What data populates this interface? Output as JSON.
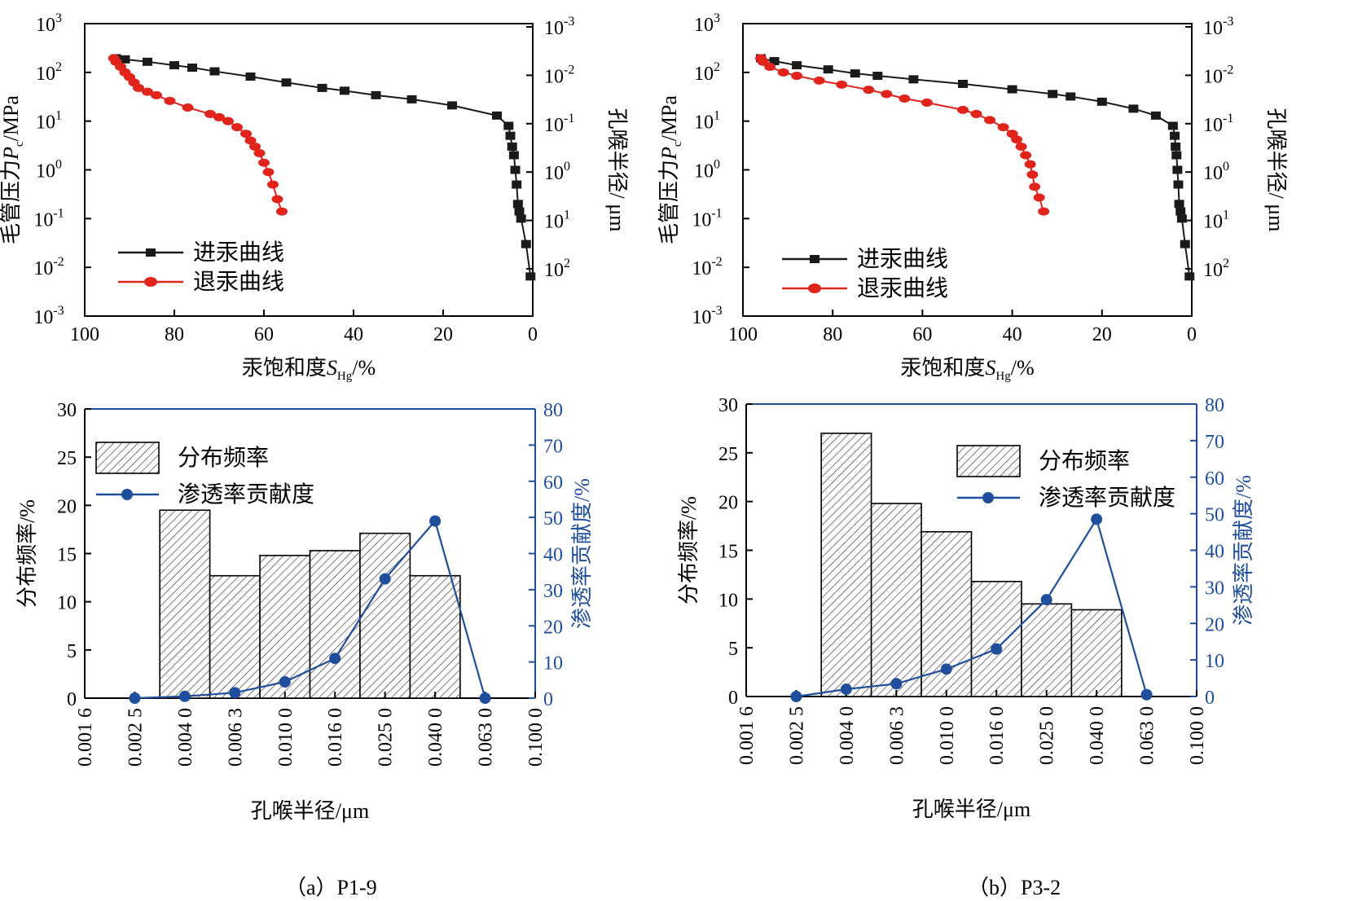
{
  "chart_data": [
    {
      "panel": "a-top",
      "type": "line",
      "xlabel": "汞饱和度",
      "xlabel_sym": "S",
      "xlabel_sub": "Hg",
      "xlabel_unit": "/%",
      "ylabel_left": "毛管压力",
      "ylabel_sym": "P",
      "ylabel_sub": "c",
      "ylabel_unit": "/MPa",
      "ylabel_right": "孔喉半径/ μm",
      "xlim": [
        100,
        0
      ],
      "xticks": [
        "100",
        "80",
        "60",
        "40",
        "20",
        "0"
      ],
      "ylim_log": [
        -3,
        3
      ],
      "yticks_left": [
        "10",
        "10",
        "10",
        "10",
        "10",
        "10",
        "10"
      ],
      "yticks_left_exp": [
        "-3",
        "-2",
        "-1",
        "0",
        "1",
        "2",
        "3"
      ],
      "yticks_right": [
        "10",
        "10",
        "10",
        "10",
        "10",
        "10"
      ],
      "yticks_right_exp": [
        "2",
        "1",
        "0",
        "-1",
        "-2",
        "-3"
      ],
      "legend": [
        "进汞曲线",
        "退汞曲线"
      ],
      "series": [
        {
          "name": "进汞曲线",
          "color": "#1a1a1a",
          "marker": "square",
          "points": [
            [
              0.5,
              0.0065
            ],
            [
              1.5,
              0.03
            ],
            [
              2.6,
              0.1
            ],
            [
              3.0,
              0.14
            ],
            [
              3.3,
              0.2
            ],
            [
              3.6,
              0.5
            ],
            [
              3.9,
              1.0
            ],
            [
              4.2,
              2.0
            ],
            [
              4.6,
              3.0
            ],
            [
              5.0,
              5.0
            ],
            [
              5.4,
              8.0
            ],
            [
              8,
              13
            ],
            [
              18,
              21
            ],
            [
              27,
              28
            ],
            [
              35,
              34
            ],
            [
              42,
              42
            ],
            [
              47,
              48
            ],
            [
              55,
              62
            ],
            [
              63,
              82
            ],
            [
              71,
              105
            ],
            [
              76,
              125
            ],
            [
              80,
              140
            ],
            [
              86,
              165
            ],
            [
              91,
              185
            ],
            [
              93,
              195
            ]
          ]
        },
        {
          "name": "退汞曲线",
          "color": "#e0231b",
          "marker": "circle",
          "points": [
            [
              56,
              0.14
            ],
            [
              57,
              0.25
            ],
            [
              58,
              0.5
            ],
            [
              59,
              0.9
            ],
            [
              60,
              1.4
            ],
            [
              61,
              2.2
            ],
            [
              62,
              3.0
            ],
            [
              63,
              4.0
            ],
            [
              64,
              5.5
            ],
            [
              66,
              7.5
            ],
            [
              68,
              10
            ],
            [
              70,
              12
            ],
            [
              72,
              14
            ],
            [
              77,
              19
            ],
            [
              81,
              26
            ],
            [
              84,
              34
            ],
            [
              86,
              40
            ],
            [
              88,
              48
            ],
            [
              89,
              62
            ],
            [
              90,
              80
            ],
            [
              91,
              100
            ],
            [
              92,
              130
            ],
            [
              93,
              165
            ],
            [
              93.5,
              195
            ]
          ]
        }
      ]
    },
    {
      "panel": "b-top",
      "type": "line",
      "xlabel": "汞饱和度",
      "xlabel_sym": "S",
      "xlabel_sub": "Hg",
      "xlabel_unit": "/%",
      "ylabel_left": "毛管压力",
      "ylabel_sym": "P",
      "ylabel_sub": "c",
      "ylabel_unit": "/MPa",
      "ylabel_right": "孔喉半径/ μm",
      "xlim": [
        100,
        0
      ],
      "xticks": [
        "100",
        "80",
        "60",
        "40",
        "20",
        "0"
      ],
      "ylim_log": [
        -3,
        3
      ],
      "yticks_left": [
        "10",
        "10",
        "10",
        "10",
        "10",
        "10",
        "10"
      ],
      "yticks_left_exp": [
        "-3",
        "-2",
        "-1",
        "0",
        "1",
        "2",
        "3"
      ],
      "yticks_right": [
        "10",
        "10",
        "10",
        "10",
        "10",
        "10"
      ],
      "yticks_right_exp": [
        "2",
        "1",
        "0",
        "-1",
        "-2",
        "-3"
      ],
      "legend": [
        "进汞曲线",
        "退汞曲线"
      ],
      "series": [
        {
          "name": "进汞曲线",
          "color": "#1a1a1a",
          "marker": "square",
          "points": [
            [
              0.5,
              0.0065
            ],
            [
              1.5,
              0.03
            ],
            [
              2.2,
              0.1
            ],
            [
              2.5,
              0.14
            ],
            [
              2.8,
              0.2
            ],
            [
              3.0,
              0.5
            ],
            [
              3.2,
              1.0
            ],
            [
              3.4,
              2.0
            ],
            [
              3.6,
              3.0
            ],
            [
              3.8,
              5.0
            ],
            [
              4.2,
              8.0
            ],
            [
              8,
              13
            ],
            [
              13,
              18
            ],
            [
              20,
              25
            ],
            [
              27,
              32
            ],
            [
              31,
              36
            ],
            [
              40,
              45
            ],
            [
              51,
              58
            ],
            [
              62,
              72
            ],
            [
              70,
              85
            ],
            [
              75,
              95
            ],
            [
              81,
              115
            ],
            [
              88,
              140
            ],
            [
              93,
              170
            ],
            [
              96,
              195
            ]
          ]
        },
        {
          "name": "退汞曲线",
          "color": "#e0231b",
          "marker": "circle",
          "points": [
            [
              33,
              0.14
            ],
            [
              34,
              0.27
            ],
            [
              35,
              0.45
            ],
            [
              35.5,
              0.8
            ],
            [
              36,
              1.3
            ],
            [
              37,
              2.0
            ],
            [
              38,
              3.0
            ],
            [
              39,
              4.2
            ],
            [
              40,
              5.5
            ],
            [
              42,
              7.5
            ],
            [
              45,
              10.5
            ],
            [
              48,
              14
            ],
            [
              51,
              17
            ],
            [
              59,
              24
            ],
            [
              64,
              29
            ],
            [
              68,
              36
            ],
            [
              72,
              44
            ],
            [
              78,
              56
            ],
            [
              83,
              68
            ],
            [
              88,
              85
            ],
            [
              91,
              100
            ],
            [
              94,
              130
            ],
            [
              95.5,
              165
            ],
            [
              96,
              195
            ]
          ]
        }
      ]
    },
    {
      "panel": "a-bottom",
      "type": "bar",
      "xlabel": "孔喉半径/μm",
      "ylabel_left": "分布频率/%",
      "ylabel_right": "渗透率贡献度/%",
      "categories": [
        "0.001 6",
        "0.002 5",
        "0.004 0",
        "0.006 3",
        "0.010 0",
        "0.016 0",
        "0.025 0",
        "0.040 0",
        "0.063 0",
        "0.100 0"
      ],
      "ylim_left": [
        0,
        30
      ],
      "yticks_left": [
        "0",
        "5",
        "10",
        "15",
        "20",
        "25",
        "30"
      ],
      "ylim_right": [
        0,
        80
      ],
      "yticks_right": [
        "0",
        "10",
        "20",
        "30",
        "40",
        "50",
        "60",
        "70",
        "80"
      ],
      "legend": [
        "分布频率",
        "渗透率贡献度"
      ],
      "bar_color": "#d9d9d9",
      "line_color": "#1f4e9c",
      "bars": [
        {
          "from": 1.5,
          "to": 2.5,
          "value": 19.5
        },
        {
          "from": 2.5,
          "to": 3.5,
          "value": 12.7
        },
        {
          "from": 3.5,
          "to": 4.5,
          "value": 14.8
        },
        {
          "from": 4.5,
          "to": 5.5,
          "value": 15.3
        },
        {
          "from": 5.5,
          "to": 6.5,
          "value": 17.1
        },
        {
          "from": 6.5,
          "to": 7.5,
          "value": 12.7
        }
      ],
      "line": [
        [
          1,
          0
        ],
        [
          2,
          0.5
        ],
        [
          3,
          1.5
        ],
        [
          4,
          4.5
        ],
        [
          5,
          11
        ],
        [
          6,
          33
        ],
        [
          7,
          49
        ],
        [
          8,
          0
        ]
      ]
    },
    {
      "panel": "b-bottom",
      "type": "bar",
      "xlabel": "孔喉半径/μm",
      "ylabel_left": "分布频率/%",
      "ylabel_right": "渗透率贡献度/%",
      "categories": [
        "0.001 6",
        "0.002 5",
        "0.004 0",
        "0.006 3",
        "0.010 0",
        "0.016 0",
        "0.025 0",
        "0.040 0",
        "0.063 0",
        "0.100 0"
      ],
      "ylim_left": [
        0,
        30
      ],
      "yticks_left": [
        "0",
        "5",
        "10",
        "15",
        "20",
        "25",
        "30"
      ],
      "ylim_right": [
        0,
        80
      ],
      "yticks_right": [
        "0",
        "10",
        "20",
        "30",
        "40",
        "50",
        "60",
        "70",
        "80"
      ],
      "legend": [
        "分布频率",
        "渗透率贡献度"
      ],
      "bar_color": "#d9d9d9",
      "line_color": "#1f4e9c",
      "bars": [
        {
          "from": 1.5,
          "to": 2.5,
          "value": 27.0
        },
        {
          "from": 2.5,
          "to": 3.5,
          "value": 19.8
        },
        {
          "from": 3.5,
          "to": 4.5,
          "value": 16.9
        },
        {
          "from": 4.5,
          "to": 5.5,
          "value": 11.8
        },
        {
          "from": 5.5,
          "to": 6.5,
          "value": 9.5
        },
        {
          "from": 6.5,
          "to": 7.5,
          "value": 8.9
        }
      ],
      "line": [
        [
          1,
          0
        ],
        [
          2,
          2
        ],
        [
          3,
          3.5
        ],
        [
          4,
          7.5
        ],
        [
          5,
          13
        ],
        [
          6,
          26.5
        ],
        [
          7,
          48.5
        ],
        [
          8,
          0.5
        ]
      ]
    }
  ],
  "captions": [
    "（a）P1-9",
    "（b）P3-2"
  ]
}
